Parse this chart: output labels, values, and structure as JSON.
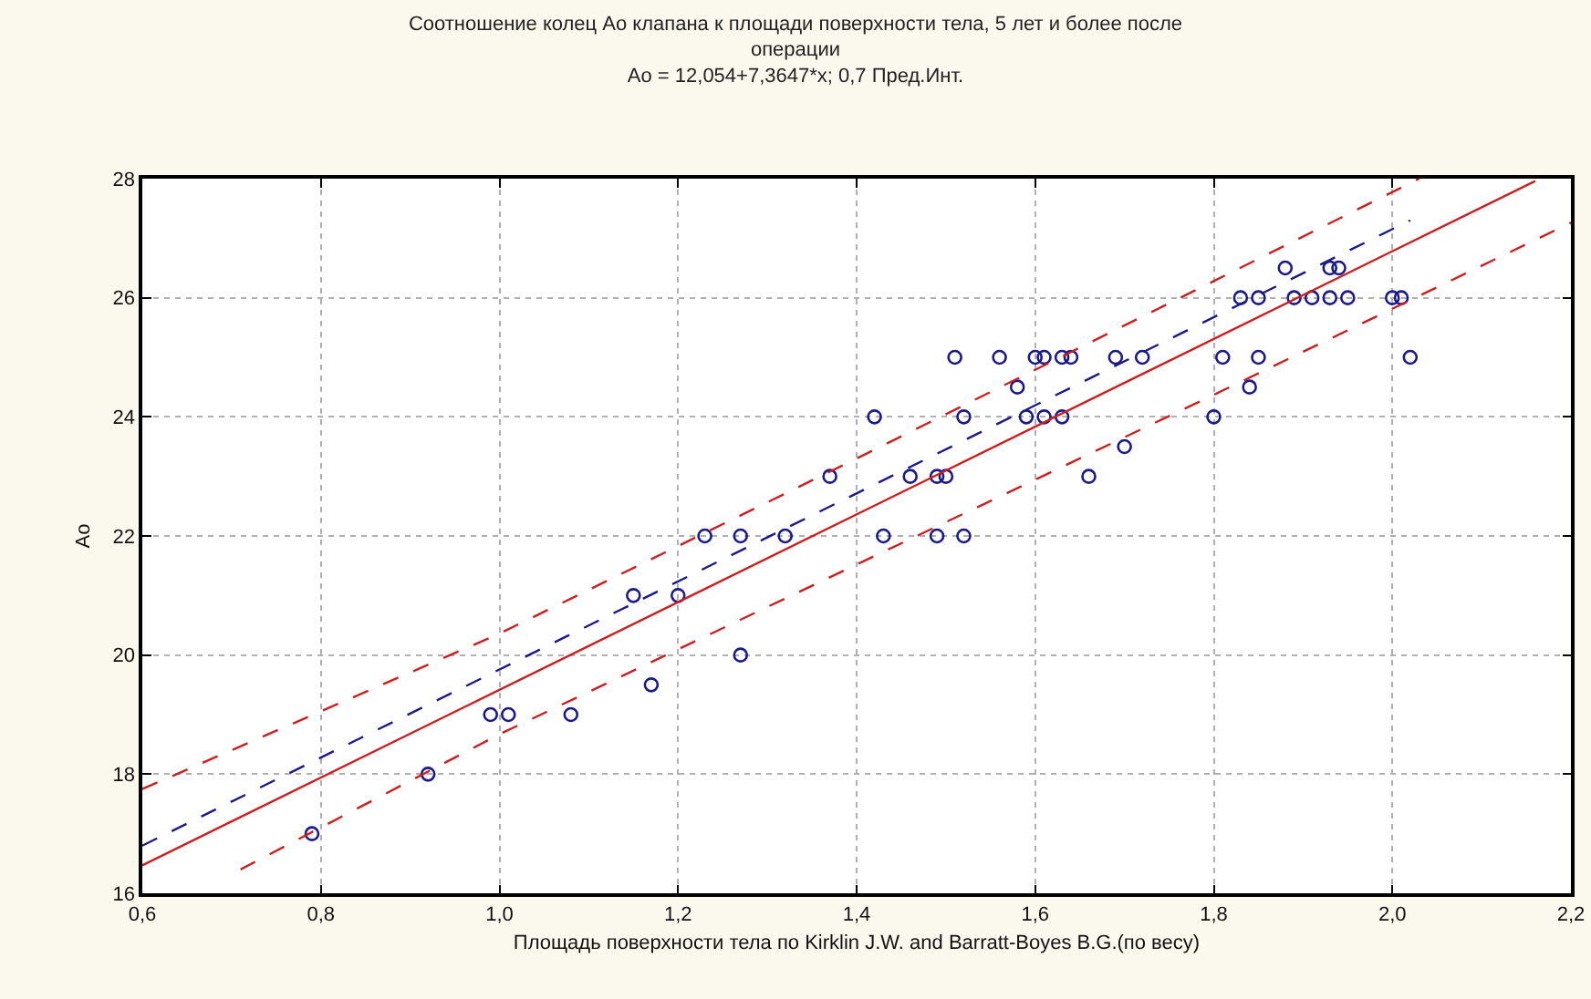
{
  "chart_data": {
    "type": "scatter",
    "title": "Соотношение колец Ао клапана к площади поверхности тела, 5 лет и более после операции",
    "subtitle": "Ао = 12,054+7,3647*x; 0,7 Пред.Инт.",
    "xlabel": "Площадь поверхности тела по Kirklin J.W. and Barratt-Boyes B.G.(по весу)",
    "ylabel": "Ао",
    "xlim": [
      0.6,
      2.2
    ],
    "xticks": [
      {
        "value": 0.6,
        "label": "0,6"
      },
      {
        "value": 0.8,
        "label": "0,8"
      },
      {
        "value": 1.0,
        "label": "1,0"
      },
      {
        "value": 1.2,
        "label": "1,2"
      },
      {
        "value": 1.4,
        "label": "1,4"
      },
      {
        "value": 1.6,
        "label": "1,6"
      },
      {
        "value": 1.8,
        "label": "1,8"
      },
      {
        "value": 2.0,
        "label": "2,0"
      },
      {
        "value": 2.2,
        "label": "2,2"
      }
    ],
    "ylim": [
      16,
      28
    ],
    "yticks": [
      16,
      18,
      20,
      22,
      24,
      26,
      28
    ],
    "grid": true,
    "series": [
      {
        "color": "#1a1a8c",
        "marker": "circle",
        "x": [
          0.79,
          0.92,
          0.99,
          1.01,
          1.08,
          1.17,
          1.15,
          1.2,
          1.23,
          1.27,
          1.32,
          1.27,
          1.37,
          1.42,
          1.43,
          1.46,
          1.49,
          1.5,
          1.49,
          1.52,
          1.51,
          1.52,
          1.56,
          1.58,
          1.6,
          1.61,
          1.63,
          1.64,
          1.59,
          1.61,
          1.63,
          1.66,
          1.69,
          1.72,
          1.7,
          1.8,
          1.81,
          1.84,
          1.85,
          1.83,
          1.85,
          1.88,
          1.89,
          1.91,
          1.93,
          1.95,
          1.93,
          1.94,
          2.0,
          2.01,
          2.02
        ],
        "values": [
          17,
          18,
          19,
          19,
          19,
          19.5,
          21,
          21,
          22,
          22,
          22,
          20,
          23,
          24,
          22,
          23,
          23,
          23,
          22,
          22,
          25,
          24,
          25,
          24.5,
          25,
          25,
          25,
          25,
          24,
          24,
          24,
          23,
          25,
          25,
          23.5,
          24,
          25,
          24.5,
          25,
          26,
          26,
          26.5,
          26,
          26,
          26,
          26,
          26.5,
          26.5,
          26,
          26,
          25
        ]
      },
      {
        "type": "line",
        "color": "#cc1f1f",
        "line_style": "solid",
        "x": [
          0.6,
          2.16
        ],
        "values": [
          16.47,
          27.96
        ]
      },
      {
        "type": "line",
        "color": "#cc1f1f",
        "line_style": "dashed",
        "x": [
          0.6,
          1.0,
          1.4,
          1.8,
          2.03
        ],
        "values": [
          17.75,
          20.36,
          23.3,
          26.28,
          28
        ]
      },
      {
        "type": "line",
        "color": "#cc1f1f",
        "line_style": "dashed",
        "x": [
          0.71,
          1.0,
          1.4,
          1.8,
          2.2
        ],
        "values": [
          16.4,
          18.67,
          21.52,
          24.37,
          27.26
        ]
      },
      {
        "type": "line",
        "color": "#1a1a8c",
        "line_style": "dashed",
        "x": [
          0.6,
          2.02
        ],
        "values": [
          16.8,
          27.3
        ]
      }
    ]
  }
}
